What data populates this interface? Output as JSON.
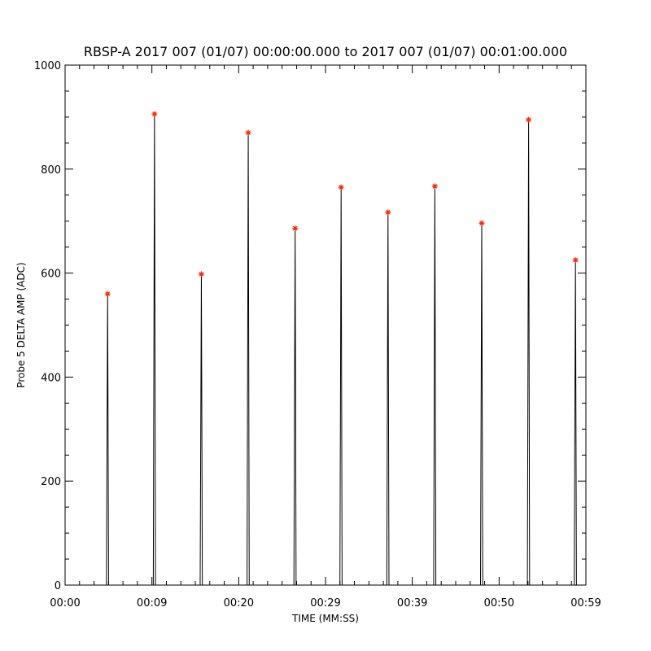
{
  "chart_data": {
    "type": "line",
    "title": "RBSP-A 2017 007 (01/07) 00:00:00.000 to 2017 007 (01/07) 00:01:00.000",
    "xlabel": "TIME (MM:SS)",
    "ylabel": "Probe 5 DELTA AMP (ADC)",
    "xlim": [
      "00:00",
      "01:00"
    ],
    "ylim": [
      0,
      1000
    ],
    "x_tick_labels": [
      "00:00",
      "00:09",
      "00:20",
      "00:29",
      "00:39",
      "00:50",
      "00:59"
    ],
    "y_tick_labels": [
      "0",
      "200",
      "400",
      "600",
      "800",
      "1000"
    ],
    "grid": false,
    "series": [
      {
        "marker": "line",
        "color": "#000000",
        "spikes": [
          {
            "x": "00:04.9",
            "y": 560
          },
          {
            "x": "00:10.3",
            "y": 906
          },
          {
            "x": "00:15.7",
            "y": 598
          },
          {
            "x": "00:21.1",
            "y": 870
          },
          {
            "x": "00:26.5",
            "y": 686
          },
          {
            "x": "00:31.8",
            "y": 765
          },
          {
            "x": "00:37.2",
            "y": 717
          },
          {
            "x": "00:42.6",
            "y": 767
          },
          {
            "x": "00:48.0",
            "y": 696
          },
          {
            "x": "00:53.4",
            "y": 895
          },
          {
            "x": "00:58.8",
            "y": 625
          }
        ]
      },
      {
        "marker": "asterisk",
        "color": "#ff2200",
        "points": [
          {
            "x": "00:04.9",
            "y": 560
          },
          {
            "x": "00:10.3",
            "y": 906
          },
          {
            "x": "00:15.7",
            "y": 598
          },
          {
            "x": "00:21.1",
            "y": 870
          },
          {
            "x": "00:26.5",
            "y": 686
          },
          {
            "x": "00:31.8",
            "y": 765
          },
          {
            "x": "00:37.2",
            "y": 717
          },
          {
            "x": "00:42.6",
            "y": 767
          },
          {
            "x": "00:48.0",
            "y": 696
          },
          {
            "x": "00:53.4",
            "y": 895
          },
          {
            "x": "00:58.8",
            "y": 625
          }
        ]
      }
    ]
  }
}
